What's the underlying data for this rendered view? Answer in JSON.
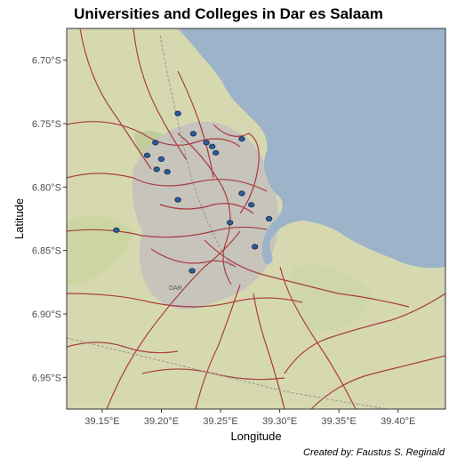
{
  "title": "Universities and Colleges in Dar es Salaam",
  "caption": "Created by: Faustus S. Reginald",
  "x_axis": {
    "label": "Longitude",
    "ticks": [
      {
        "value": 39.15,
        "label": "39.15°E"
      },
      {
        "value": 39.2,
        "label": "39.20°E"
      },
      {
        "value": 39.25,
        "label": "39.25°E"
      },
      {
        "value": 39.3,
        "label": "39.30°E"
      },
      {
        "value": 39.35,
        "label": "39.35°E"
      },
      {
        "value": 39.4,
        "label": "39.40°E"
      }
    ]
  },
  "y_axis": {
    "label": "Latitude",
    "ticks": [
      {
        "value": -6.7,
        "label": "6.70°S"
      },
      {
        "value": -6.75,
        "label": "6.75°S"
      },
      {
        "value": -6.8,
        "label": "6.80°S"
      },
      {
        "value": -6.85,
        "label": "6.85°S"
      },
      {
        "value": -6.9,
        "label": "6.90°S"
      },
      {
        "value": -6.95,
        "label": "6.95°S"
      }
    ]
  },
  "map_label": "DAR",
  "colors": {
    "water": "#9cb3c9",
    "land": "#d6d9b0",
    "urban": "#c7c4bc",
    "roads": "#a3242b",
    "universities_fill": "#2b5d9a",
    "universities_outline": "#1d3557"
  },
  "chart_data": {
    "type": "map",
    "xlim": [
      39.12,
      39.44
    ],
    "ylim": [
      -6.975,
      -6.675
    ],
    "universities": [
      {
        "lon": 39.214,
        "lat": -6.742
      },
      {
        "lon": 39.227,
        "lat": -6.758
      },
      {
        "lon": 39.238,
        "lat": -6.765
      },
      {
        "lon": 39.243,
        "lat": -6.768
      },
      {
        "lon": 39.246,
        "lat": -6.773
      },
      {
        "lon": 39.268,
        "lat": -6.762
      },
      {
        "lon": 39.195,
        "lat": -6.765
      },
      {
        "lon": 39.2,
        "lat": -6.778
      },
      {
        "lon": 39.188,
        "lat": -6.775
      },
      {
        "lon": 39.196,
        "lat": -6.786
      },
      {
        "lon": 39.205,
        "lat": -6.788
      },
      {
        "lon": 39.214,
        "lat": -6.81
      },
      {
        "lon": 39.268,
        "lat": -6.805
      },
      {
        "lon": 39.276,
        "lat": -6.814
      },
      {
        "lon": 39.291,
        "lat": -6.825
      },
      {
        "lon": 39.258,
        "lat": -6.828
      },
      {
        "lon": 39.279,
        "lat": -6.847
      },
      {
        "lon": 39.226,
        "lat": -6.866
      },
      {
        "lon": 39.162,
        "lat": -6.834
      }
    ]
  }
}
